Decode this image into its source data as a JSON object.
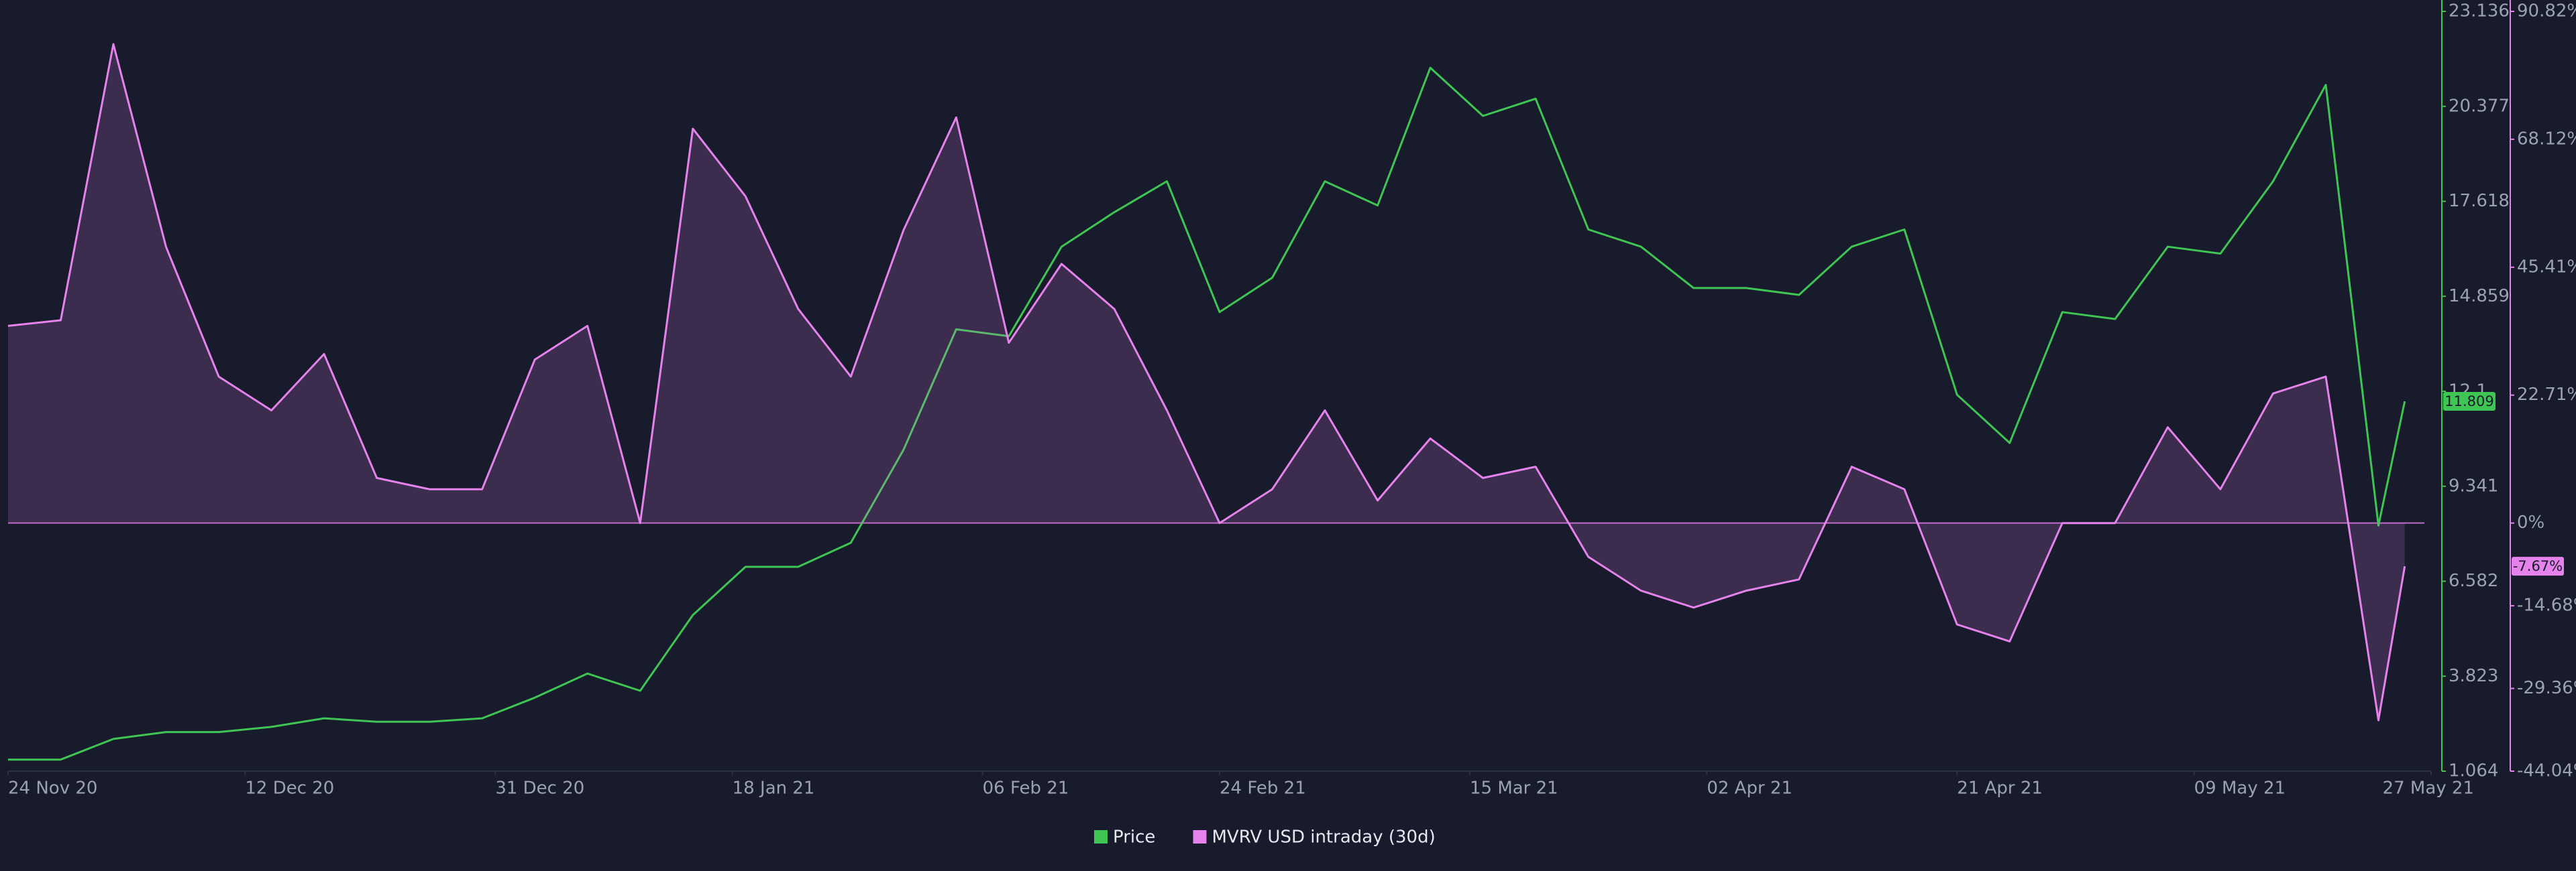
{
  "chart_data": {
    "type": "line",
    "x": [
      "2020-11-24",
      "2020-11-28",
      "2020-12-02",
      "2020-12-06",
      "2020-12-10",
      "2020-12-14",
      "2020-12-18",
      "2020-12-22",
      "2020-12-26",
      "2020-12-30",
      "2021-01-03",
      "2021-01-07",
      "2021-01-11",
      "2021-01-15",
      "2021-01-19",
      "2021-01-23",
      "2021-01-27",
      "2021-01-31",
      "2021-02-04",
      "2021-02-08",
      "2021-02-12",
      "2021-02-16",
      "2021-02-20",
      "2021-02-24",
      "2021-02-28",
      "2021-03-04",
      "2021-03-08",
      "2021-03-12",
      "2021-03-16",
      "2021-03-20",
      "2021-03-24",
      "2021-03-28",
      "2021-04-01",
      "2021-04-05",
      "2021-04-09",
      "2021-04-13",
      "2021-04-17",
      "2021-04-21",
      "2021-04-25",
      "2021-04-29",
      "2021-05-03",
      "2021-05-07",
      "2021-05-11",
      "2021-05-15",
      "2021-05-19",
      "2021-05-23",
      "2021-05-25"
    ],
    "series": [
      {
        "name": "Price",
        "color": "#3fc553",
        "axis": "y",
        "values": [
          1.4,
          1.4,
          2.0,
          2.2,
          2.2,
          2.35,
          2.6,
          2.5,
          2.5,
          2.6,
          3.2,
          3.9,
          3.4,
          5.6,
          7.0,
          7.0,
          7.7,
          10.4,
          13.9,
          13.7,
          16.3,
          17.3,
          18.2,
          14.4,
          15.4,
          18.2,
          17.5,
          21.5,
          20.1,
          20.6,
          16.8,
          16.3,
          15.1,
          15.1,
          14.9,
          16.3,
          16.8,
          12.0,
          10.6,
          14.4,
          14.2,
          16.3,
          16.1,
          18.2,
          21.0,
          8.2,
          11.809
        ]
      },
      {
        "name": "MVRV USD intraday (30d)",
        "color": "#e582ec",
        "axis": "y2",
        "last_label": "-7.67%",
        "values": [
          35,
          36,
          85,
          49,
          26,
          20,
          30,
          8,
          6,
          6,
          29,
          35,
          0,
          70,
          58,
          38,
          26,
          52,
          72,
          32,
          46,
          38,
          20,
          0,
          6,
          20,
          4,
          15,
          8,
          10,
          -6,
          -12,
          -15,
          -12,
          -10,
          10,
          6,
          -18,
          -21,
          0,
          0,
          17,
          6,
          23,
          26,
          -35,
          -7.67
        ]
      }
    ],
    "xlim": [
      "2020-11-24",
      "2021-05-27"
    ],
    "xticks": [
      {
        "value": "2020-11-24",
        "label": "24 Nov 20"
      },
      {
        "value": "2020-12-12",
        "label": "12 Dec 20"
      },
      {
        "value": "2020-12-31",
        "label": "31 Dec 20"
      },
      {
        "value": "2021-01-18",
        "label": "18 Jan 21"
      },
      {
        "value": "2021-02-06",
        "label": "06 Feb 21"
      },
      {
        "value": "2021-02-24",
        "label": "24 Feb 21"
      },
      {
        "value": "2021-03-15",
        "label": "15 Mar 21"
      },
      {
        "value": "2021-04-02",
        "label": "02 Apr 21"
      },
      {
        "value": "2021-04-21",
        "label": "21 Apr 21"
      },
      {
        "value": "2021-05-09",
        "label": "09 May 21"
      },
      {
        "value": "2021-05-27",
        "label": "27 May 21"
      }
    ],
    "ylim": [
      1.064,
      23.136
    ],
    "yticks": [
      1.064,
      3.823,
      6.582,
      9.341,
      12.1,
      14.859,
      17.618,
      20.377,
      23.136
    ],
    "y2lim": [
      -44.04,
      90.82
    ],
    "y2ticks": [
      {
        "value": -44.04,
        "label": "-44.04%"
      },
      {
        "value": -29.36,
        "label": "-29.36%"
      },
      {
        "value": -14.68,
        "label": "-14.68%"
      },
      {
        "value": 0,
        "label": "0%"
      },
      {
        "value": 22.71,
        "label": "22.71%"
      },
      {
        "value": 45.41,
        "label": "45.41%"
      },
      {
        "value": 68.12,
        "label": "68.12%"
      },
      {
        "value": 90.82,
        "label": "90.82%"
      }
    ],
    "legend": "bottom"
  }
}
